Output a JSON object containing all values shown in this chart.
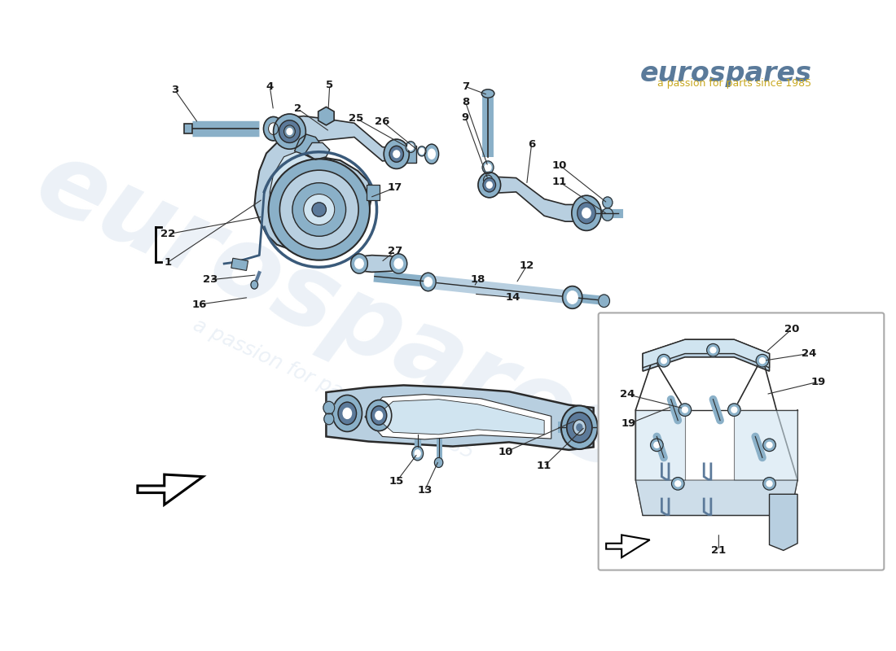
{
  "background_color": "#ffffff",
  "part_color_light": "#b8cfe0",
  "part_color_mid": "#8ab0c8",
  "part_color_dark": "#5c7a9a",
  "part_color_very_light": "#d0e4f0",
  "line_color": "#2a2a2a",
  "watermark_color": "#c8d8e8",
  "watermark_text1": "eurospares",
  "watermark_text2": "a passion for parts since 1985",
  "logo_text": "eurospares",
  "logo_subtext": "a passion for parts since 1985",
  "figsize": [
    11.0,
    8.0
  ],
  "dpi": 100
}
